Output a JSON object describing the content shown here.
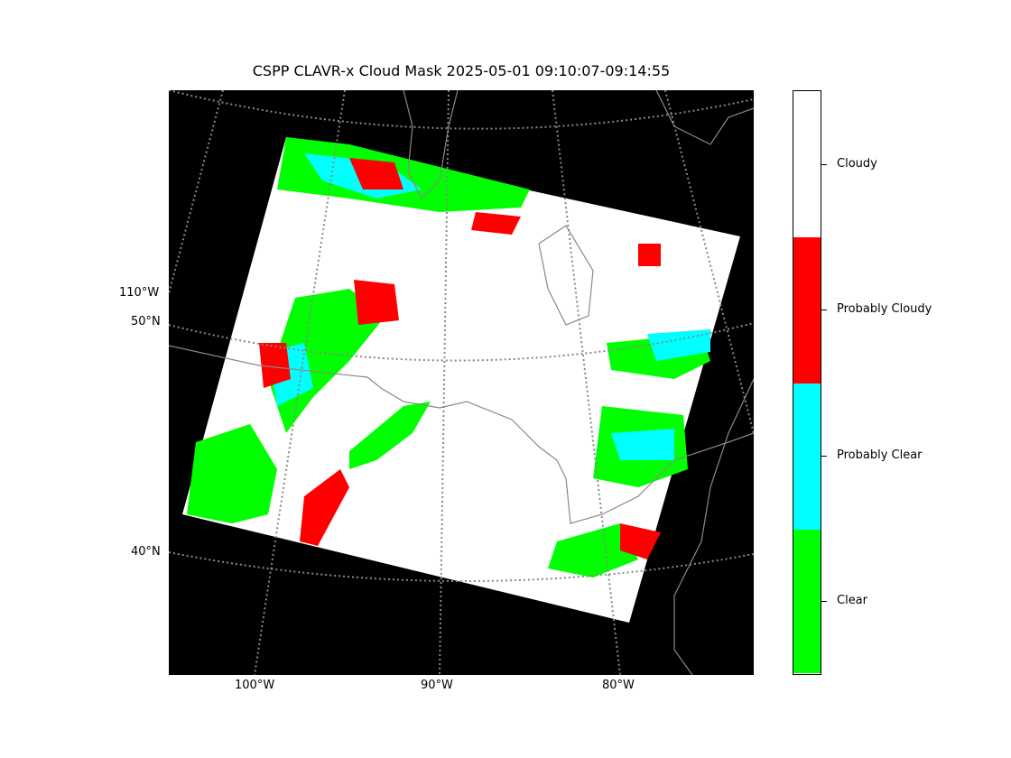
{
  "title": "CSPP CLAVR-x Cloud Mask 2025-05-01 09:10:07-09:14:55",
  "colors": {
    "background": "#000000",
    "graticule": "#888888",
    "coastline": "#888888"
  },
  "graticule": {
    "lat_labels": [
      "50°N",
      "40°N"
    ],
    "lon_labels_left": [
      "110°W"
    ],
    "lon_labels_bottom": [
      "100°W",
      "90°W",
      "80°W"
    ]
  },
  "legend": {
    "items": [
      {
        "label": "Cloudy",
        "color": "#ffffff"
      },
      {
        "label": "Probably Cloudy",
        "color": "#ff0000"
      },
      {
        "label": "Probably Clear",
        "color": "#00ffff"
      },
      {
        "label": "Clear",
        "color": "#00ff00"
      }
    ]
  }
}
